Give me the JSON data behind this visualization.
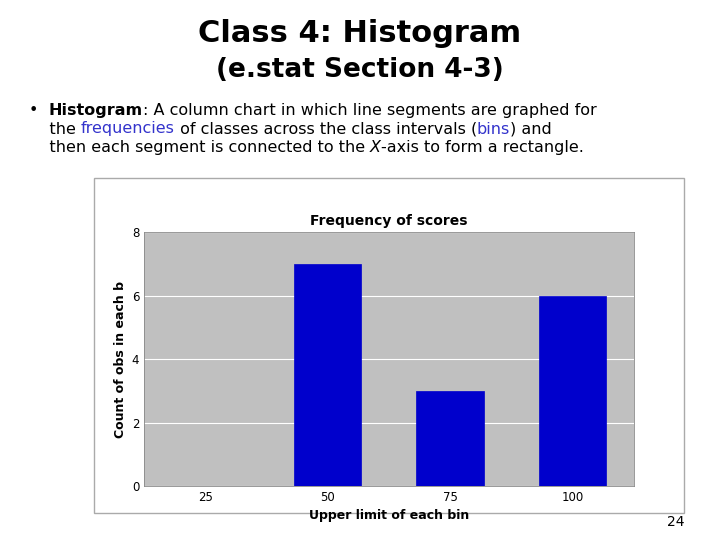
{
  "title_line1": "Class 4: Histogram",
  "title_line2": "(e.stat Section 4-3)",
  "chart_title": "Frequency of scores",
  "xlabel": "Upper limit of each bin",
  "ylabel": "Count of obs in each b",
  "categories": [
    "25",
    "50",
    "75",
    "100"
  ],
  "values": [
    0,
    7,
    3,
    6
  ],
  "bar_color": "#0000cc",
  "bar_width": 0.55,
  "ylim": [
    0,
    8
  ],
  "yticks": [
    0,
    2,
    4,
    6,
    8
  ],
  "chart_bg": "#c0c0c0",
  "slide_bg": "#ffffff",
  "page_number": "24",
  "title_fontsize": 22,
  "subtitle_fontsize": 19,
  "bullet_fontsize": 11.5,
  "chart_title_fontsize": 10,
  "axis_label_fontsize": 9,
  "tick_fontsize": 8.5
}
